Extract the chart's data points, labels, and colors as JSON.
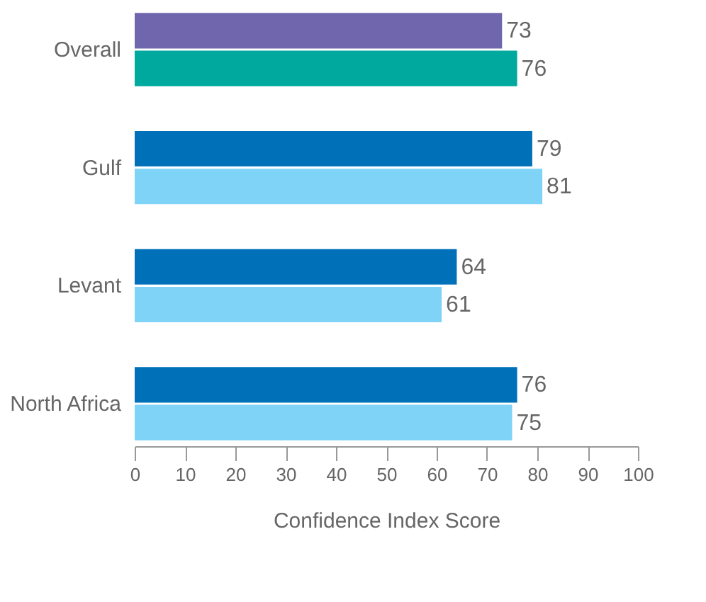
{
  "chart_data": {
    "type": "bar",
    "orientation": "horizontal",
    "xlabel": "Confidence Index Score",
    "categories": [
      "Overall",
      "Gulf",
      "Levant",
      "North Africa"
    ],
    "series": [
      {
        "values": [
          73,
          79,
          64,
          76
        ],
        "colors": [
          "#7066ae",
          "#0070b8",
          "#0070b8",
          "#0070b8"
        ]
      },
      {
        "values": [
          76,
          81,
          61,
          75
        ],
        "colors": [
          "#00a99d",
          "#7fd3f7",
          "#7fd3f7",
          "#7fd3f7"
        ]
      }
    ],
    "xlim": [
      0,
      100
    ],
    "xticks": [
      0,
      10,
      20,
      30,
      40,
      50,
      60,
      70,
      80,
      90,
      100
    ],
    "data_labels": true
  }
}
